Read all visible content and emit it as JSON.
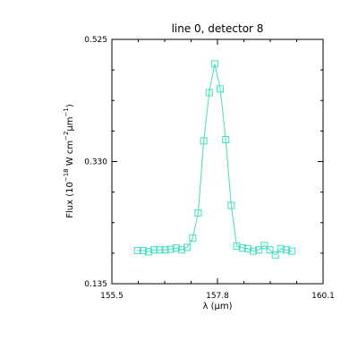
{
  "chart_data": {
    "type": "line",
    "title": "line 0, detector 8",
    "xlabel_main": "λ (",
    "xlabel_unit": "μ",
    "xlabel_tail": "m)",
    "ylabel_prefix": "Flux (10",
    "ylabel_exp1": "−18",
    "ylabel_w": " W cm",
    "ylabel_exp2": "−2",
    "ylabel_mu": "μ",
    "ylabel_m": "m",
    "ylabel_exp3": "−1",
    "ylabel_close": ")",
    "xlim": [
      155.5,
      160.1
    ],
    "ylim": [
      0.135,
      0.525
    ],
    "xticks": [
      {
        "value": 155.5,
        "label": "155.5"
      },
      {
        "value": 157.8,
        "label": "157.8"
      },
      {
        "value": 160.1,
        "label": "160.1"
      }
    ],
    "yticks": [
      {
        "value": 0.135,
        "label": "0.135"
      },
      {
        "value": 0.33,
        "label": "0.330"
      },
      {
        "value": 0.525,
        "label": "0.525"
      }
    ],
    "marker": "square",
    "grid": false,
    "color": "#40e0c0",
    "series": [
      {
        "x": [
          156.06,
          156.18,
          156.3,
          156.42,
          156.54,
          156.66,
          156.78,
          156.9,
          157.02,
          157.14,
          157.26,
          157.38,
          157.5,
          157.62,
          157.74,
          157.86,
          157.98,
          158.1,
          158.22,
          158.34,
          158.46,
          158.58,
          158.7,
          158.82,
          158.94,
          159.06,
          159.18,
          159.3,
          159.42
        ],
        "y": [
          0.188,
          0.188,
          0.186,
          0.189,
          0.189,
          0.189,
          0.19,
          0.192,
          0.189,
          0.193,
          0.208,
          0.248,
          0.363,
          0.44,
          0.486,
          0.446,
          0.365,
          0.26,
          0.195,
          0.192,
          0.191,
          0.187,
          0.189,
          0.196,
          0.189,
          0.181,
          0.191,
          0.189,
          0.187
        ]
      }
    ]
  }
}
